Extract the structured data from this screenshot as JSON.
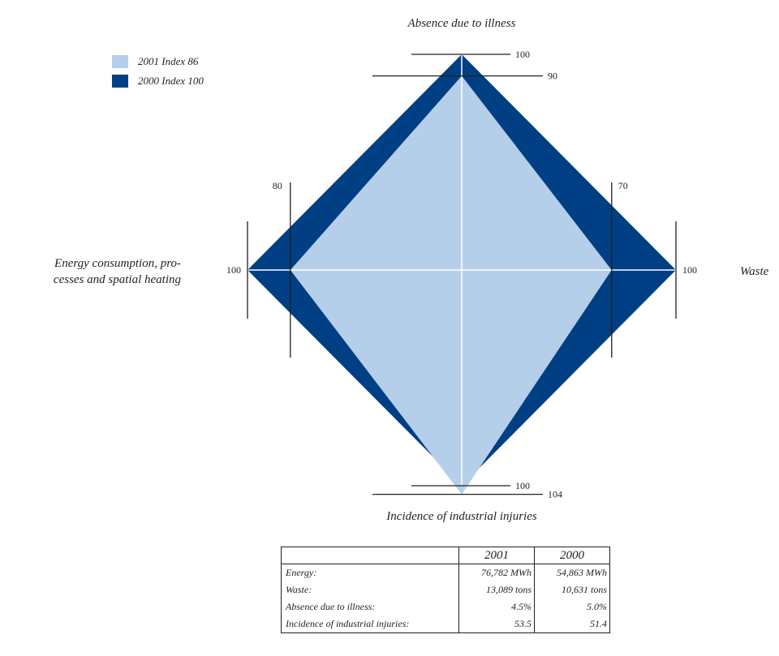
{
  "chart_data": {
    "type": "radar",
    "axes": [
      {
        "label": "Absence due to illness",
        "ticks": [
          90,
          100
        ]
      },
      {
        "label": "Waste",
        "ticks": [
          70,
          100
        ]
      },
      {
        "label": "Incidence of industrial injuries",
        "ticks": [
          100,
          104
        ]
      },
      {
        "label": "Energy consumption, pro-\ncesses and spatial heating",
        "ticks": [
          80,
          100
        ]
      }
    ],
    "series": [
      {
        "name": "2000 Index 100",
        "color": "#003f84",
        "values": [
          100,
          100,
          100,
          100
        ]
      },
      {
        "name": "2001 Index 86",
        "color": "#b5cfeb",
        "values": [
          90,
          70,
          104,
          80
        ]
      }
    ]
  },
  "legend": [
    {
      "label": "2001 Index 86",
      "color": "#b5cfeb"
    },
    {
      "label": "2000 Index 100",
      "color": "#003f84"
    }
  ],
  "table": {
    "headers": [
      "",
      "2001",
      "2000"
    ],
    "rows": [
      {
        "label": "Energy:",
        "v2001": "76,782 MWh",
        "v2000": "54,863 MWh"
      },
      {
        "label": "Waste:",
        "v2001": "13,089 tons",
        "v2000": "10,631 tons"
      },
      {
        "label": "Absence due to illness:",
        "v2001": "4.5%",
        "v2000": "5.0%"
      },
      {
        "label": "Incidence of industrial injuries:",
        "v2001": "53.5",
        "v2000": "51.4"
      }
    ]
  }
}
